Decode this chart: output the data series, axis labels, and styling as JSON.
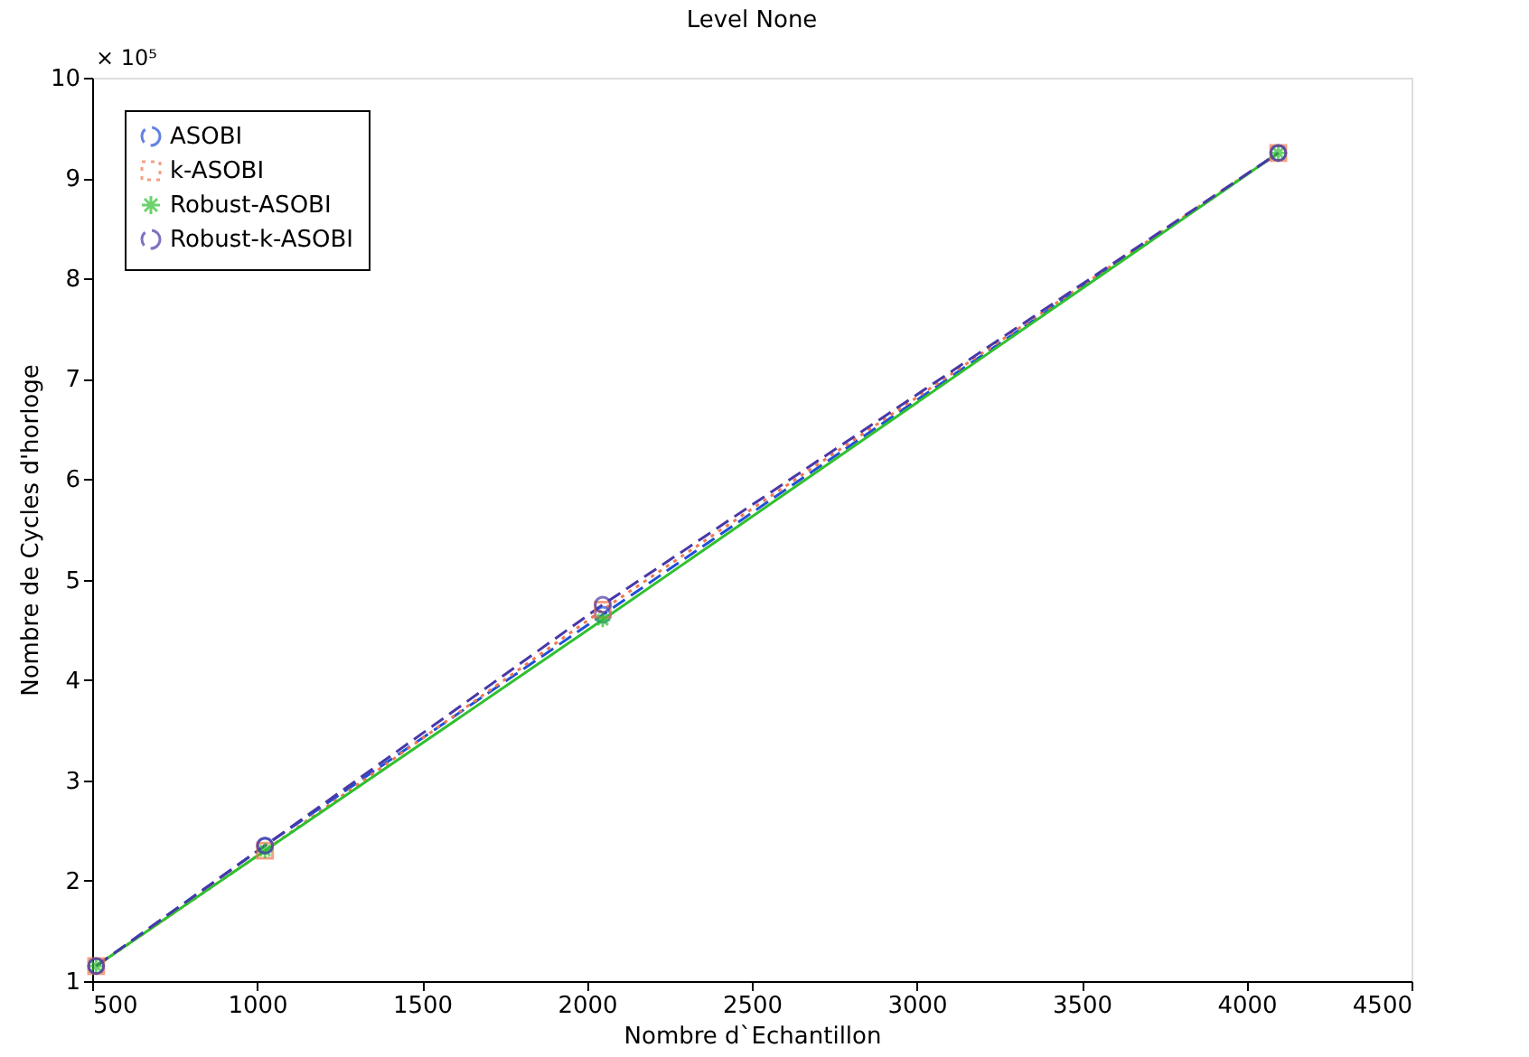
{
  "chart_data": {
    "type": "line",
    "title": "Level None",
    "xlabel": "Nombre d`Echantillon",
    "ylabel": "Nombre de Cycles d'horloge",
    "x": [
      512,
      1024,
      2048,
      4096
    ],
    "series": [
      {
        "name": "ASOBI",
        "color": "#2050d8",
        "values": [
          1.15,
          2.35,
          4.65,
          9.25
        ],
        "marker": "circle",
        "line_style": "dashed"
      },
      {
        "name": "k-ASOBI",
        "color": "#f07850",
        "values": [
          1.15,
          2.3,
          4.7,
          9.25
        ],
        "marker": "square",
        "line_style": "dotted"
      },
      {
        "name": "Robust-ASOBI",
        "color": "#30c030",
        "values": [
          1.15,
          2.3,
          4.6,
          9.25
        ],
        "marker": "cross",
        "line_style": "solid"
      },
      {
        "name": "Robust-k-ASOBI",
        "color": "#4838a8",
        "values": [
          1.15,
          2.35,
          4.75,
          9.25
        ],
        "marker": "circle",
        "line_style": "dashed"
      }
    ],
    "xlim": [
      500,
      4500
    ],
    "xticks": [
      500,
      1000,
      1500,
      2000,
      2500,
      3000,
      3500,
      4000,
      4500
    ],
    "ylim": [
      1,
      10
    ],
    "yticks": [
      1,
      2,
      3,
      4,
      5,
      6,
      7,
      8,
      9,
      10
    ],
    "annotations": [
      "× 10⁵"
    ],
    "grid": false,
    "legend": "top left"
  }
}
